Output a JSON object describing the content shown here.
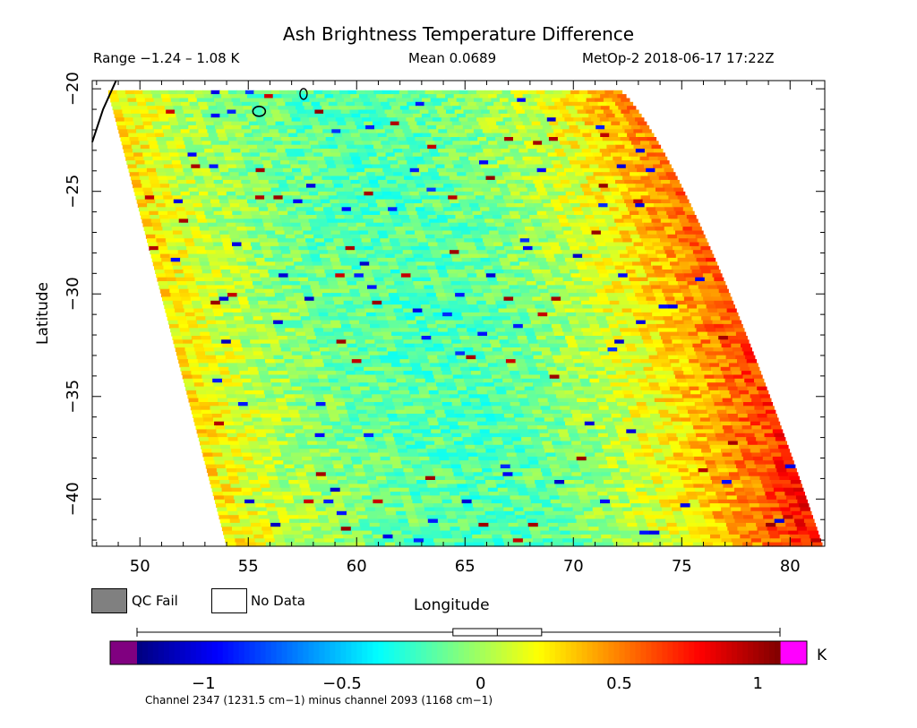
{
  "chart_data": {
    "type": "heatmap",
    "title": "Ash Brightness Temperature Difference",
    "range_text": "Range −1.24 – 1.08 K",
    "mean_text": "Mean 0.0689",
    "source_text": "MetOp-2 2018-06-17 17:22Z",
    "xlabel": "Longitude",
    "ylabel": "Latitude",
    "xlim": [
      47.8,
      81.6
    ],
    "ylim": [
      -42.3,
      -19.6
    ],
    "x_ticks": [
      "50",
      "55",
      "60",
      "65",
      "70",
      "75",
      "80"
    ],
    "x_tick_values": [
      50,
      55,
      60,
      65,
      70,
      75,
      80
    ],
    "y_ticks": [
      "−20",
      "−25",
      "−30",
      "−35",
      "−40"
    ],
    "y_tick_values": [
      -20,
      -25,
      -30,
      -35,
      -40
    ],
    "swath_corners": {
      "top_left": [
        48.5,
        -20
      ],
      "top_right": [
        72,
        -20
      ],
      "bottom_left": [
        54,
        -42.3
      ],
      "bottom_right": [
        81.5,
        -42.3
      ]
    },
    "colorbar": {
      "range": [
        -1.24,
        1.08
      ],
      "ticks": [
        "−1",
        "−0.5",
        "0",
        "0.5",
        "1"
      ],
      "tick_values": [
        -1,
        -0.5,
        0,
        0.5,
        1
      ],
      "unit": "K",
      "boxplot": {
        "min": -1.24,
        "q1": -0.1,
        "median": 0.06,
        "q3": 0.22,
        "max": 1.08
      },
      "under_color": "#800080",
      "over_color": "#ff00ff"
    },
    "legend": [
      {
        "label": "QC Fail",
        "color": "#808080"
      },
      {
        "label": "No Data",
        "color": "#ffffff"
      }
    ],
    "footnote": "Channel 2347 (1231.5 cm−1) minus channel 2093 (1168 cm−1)"
  }
}
